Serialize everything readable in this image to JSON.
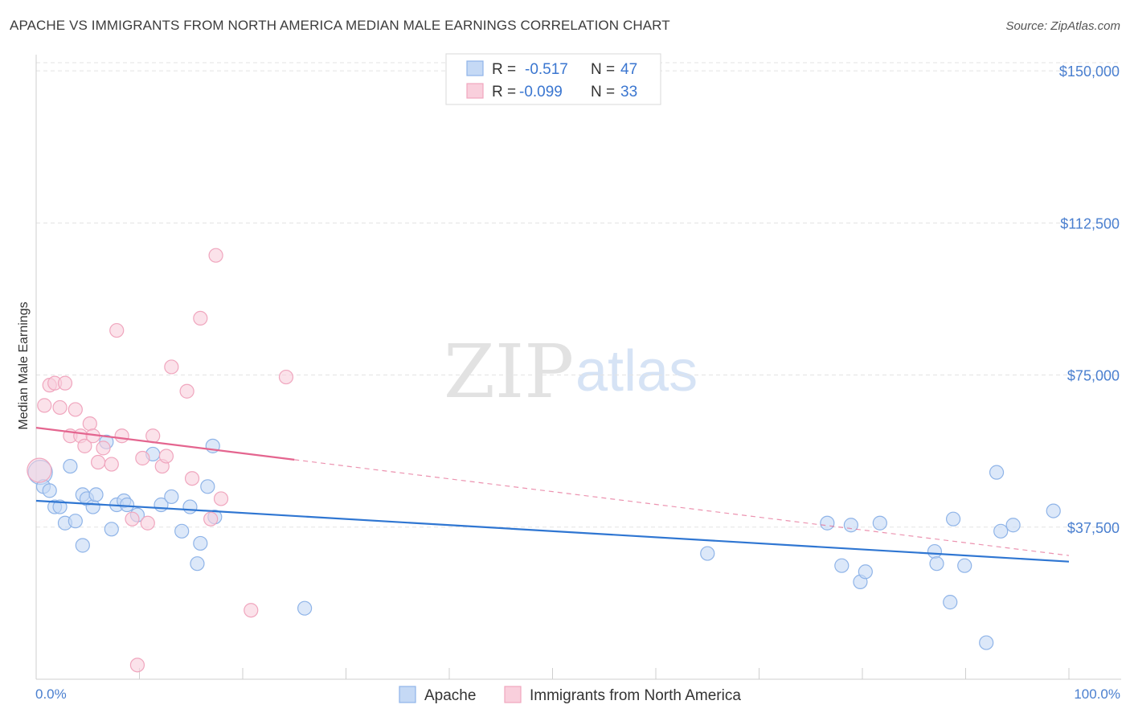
{
  "title": "APACHE VS IMMIGRANTS FROM NORTH AMERICA MEDIAN MALE EARNINGS CORRELATION CHART",
  "source": "Source: ZipAtlas.com",
  "watermark": {
    "zip": "ZIP",
    "atlas": "atlas"
  },
  "legend": {
    "rows": [
      {
        "r_label": "R =",
        "r_value": "-0.517",
        "n_label": "N =",
        "n_value": "47"
      },
      {
        "r_label": "R =",
        "r_value": "-0.099",
        "n_label": "N =",
        "n_value": "33"
      }
    ]
  },
  "chart_data": {
    "type": "scatter",
    "title": "APACHE VS IMMIGRANTS FROM NORTH AMERICA MEDIAN MALE EARNINGS CORRELATION CHART",
    "xlabel": "",
    "ylabel": "Median Male Earnings",
    "xlim": [
      0,
      100
    ],
    "ylim": [
      0,
      152000
    ],
    "x_tick_labels": [
      "0.0%",
      "100.0%"
    ],
    "y_ticks": [
      {
        "value": 37500,
        "label": "$37,500"
      },
      {
        "value": 75000,
        "label": "$75,000"
      },
      {
        "value": 112500,
        "label": "$112,500"
      },
      {
        "value": 150000,
        "label": "$150,000"
      }
    ],
    "series": [
      {
        "name": "Apache",
        "color": "#8fb4e8",
        "fill": "#c5d9f5",
        "line_color": "#2f76d2",
        "trend": {
          "x0": 0,
          "y0": 44000,
          "x1": 100,
          "y1": 29000,
          "solid_until": 100
        },
        "points": [
          [
            0.4,
            51000
          ],
          [
            0.7,
            47500
          ],
          [
            1.3,
            46500
          ],
          [
            1.8,
            42500
          ],
          [
            2.3,
            42500
          ],
          [
            2.8,
            38500
          ],
          [
            3.3,
            52500
          ],
          [
            3.8,
            39000
          ],
          [
            4.5,
            33000
          ],
          [
            4.5,
            45500
          ],
          [
            4.9,
            44500
          ],
          [
            5.5,
            42500
          ],
          [
            5.8,
            45500
          ],
          [
            6.8,
            58500
          ],
          [
            7.3,
            37000
          ],
          [
            7.8,
            43000
          ],
          [
            8.5,
            44000
          ],
          [
            8.8,
            43000
          ],
          [
            9.8,
            40500
          ],
          [
            11.3,
            55500
          ],
          [
            12.1,
            43000
          ],
          [
            13.1,
            45000
          ],
          [
            14.1,
            36500
          ],
          [
            14.9,
            42500
          ],
          [
            15.6,
            28500
          ],
          [
            15.9,
            33500
          ],
          [
            16.6,
            47500
          ],
          [
            17.1,
            57500
          ],
          [
            17.3,
            40000
          ],
          [
            26.0,
            17500
          ],
          [
            65.0,
            31000
          ],
          [
            76.6,
            38500
          ],
          [
            78.0,
            28000
          ],
          [
            78.9,
            38000
          ],
          [
            79.8,
            24000
          ],
          [
            80.3,
            26500
          ],
          [
            81.7,
            38500
          ],
          [
            87.0,
            31500
          ],
          [
            87.2,
            28500
          ],
          [
            88.5,
            19000
          ],
          [
            88.8,
            39500
          ],
          [
            89.9,
            28000
          ],
          [
            92.0,
            9000
          ],
          [
            93.0,
            51000
          ],
          [
            93.4,
            36500
          ],
          [
            94.6,
            38000
          ],
          [
            98.5,
            41500
          ]
        ]
      },
      {
        "name": "Immigrants from North America",
        "color": "#f0a6be",
        "fill": "#f9cfdc",
        "line_color": "#e4658f",
        "trend": {
          "x0": 0,
          "y0": 62000,
          "x1": 100,
          "y1": 30500,
          "solid_until": 25
        },
        "points": [
          [
            0.3,
            51500
          ],
          [
            0.8,
            67500
          ],
          [
            1.3,
            72500
          ],
          [
            1.8,
            73000
          ],
          [
            2.3,
            67000
          ],
          [
            2.8,
            73000
          ],
          [
            3.3,
            60000
          ],
          [
            3.8,
            66500
          ],
          [
            4.3,
            60000
          ],
          [
            4.7,
            57500
          ],
          [
            5.2,
            63000
          ],
          [
            5.5,
            60000
          ],
          [
            6.0,
            53500
          ],
          [
            6.5,
            57000
          ],
          [
            7.3,
            53000
          ],
          [
            7.8,
            86000
          ],
          [
            8.3,
            60000
          ],
          [
            9.3,
            39500
          ],
          [
            9.8,
            3500
          ],
          [
            10.3,
            54500
          ],
          [
            10.8,
            38500
          ],
          [
            11.3,
            60000
          ],
          [
            12.2,
            52500
          ],
          [
            12.6,
            55000
          ],
          [
            13.1,
            77000
          ],
          [
            14.6,
            71000
          ],
          [
            15.1,
            49500
          ],
          [
            15.9,
            89000
          ],
          [
            16.9,
            39500
          ],
          [
            17.4,
            104500
          ],
          [
            17.9,
            44500
          ],
          [
            20.8,
            17000
          ],
          [
            24.2,
            74500
          ]
        ]
      }
    ]
  }
}
